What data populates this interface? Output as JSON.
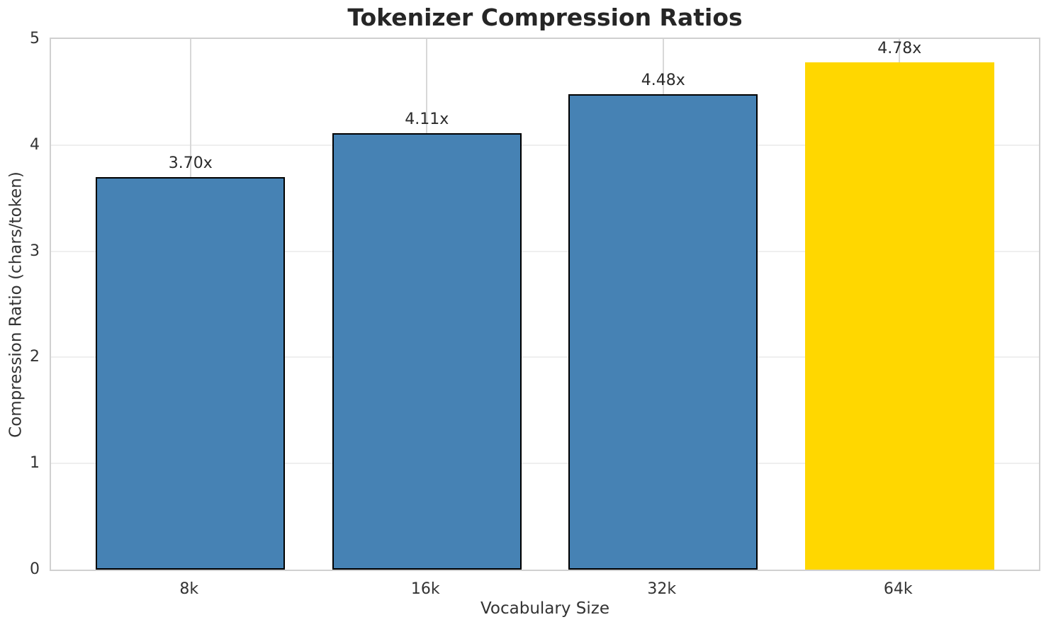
{
  "chart_data": {
    "type": "bar",
    "title": "Tokenizer Compression Ratios",
    "xlabel": "Vocabulary Size",
    "ylabel": "Compression Ratio (chars/token)",
    "categories": [
      "8k",
      "16k",
      "32k",
      "64k"
    ],
    "values": [
      3.7,
      4.11,
      4.48,
      4.78
    ],
    "bars": [
      {
        "category": "8k",
        "value": 3.7,
        "label": "3.70x",
        "color": "#4682B4",
        "edge_color": "#000000",
        "edge_width": 2.5
      },
      {
        "category": "16k",
        "value": 4.11,
        "label": "4.11x",
        "color": "#4682B4",
        "edge_color": "#000000",
        "edge_width": 2.5
      },
      {
        "category": "32k",
        "value": 4.48,
        "label": "4.48x",
        "color": "#4682B4",
        "edge_color": "#000000",
        "edge_width": 2.5
      },
      {
        "category": "64k",
        "value": 4.78,
        "label": "4.78x",
        "color": "#FFD700",
        "edge_color": null,
        "edge_width": 0
      }
    ],
    "ylim": [
      0,
      5
    ],
    "yticks": [
      0,
      1,
      2,
      3,
      4,
      5
    ],
    "xlim": [
      -0.59,
      3.59
    ],
    "bar_width": 0.8,
    "grid": true,
    "legend_position": null,
    "colors": {
      "default_bar": "#4682B4",
      "highlight_bar": "#FFD700",
      "bar_edge": "#000000",
      "h_gridline": "#efefef",
      "v_gridline": "#d8d8d8",
      "spine": "#d0d0d0",
      "tick_text": "#333333",
      "title_text": "#262626",
      "background": "#ffffff"
    }
  }
}
